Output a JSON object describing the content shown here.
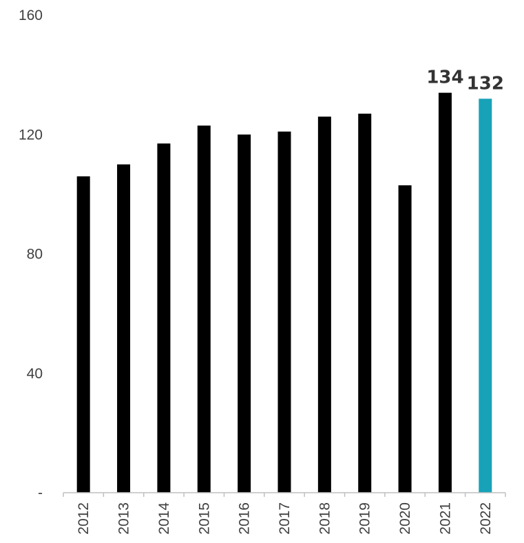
{
  "chart_data": {
    "type": "bar",
    "title": "",
    "xlabel": "",
    "ylabel": "",
    "categories": [
      "2012",
      "2013",
      "2014",
      "2015",
      "2016",
      "2017",
      "2018",
      "2019",
      "2020",
      "2021",
      "2022"
    ],
    "values": [
      106,
      110,
      117,
      123,
      120,
      121,
      126,
      127,
      103,
      134,
      132
    ],
    "ylim": [
      0,
      160
    ],
    "y_ticks": [
      0,
      40,
      80,
      120,
      160
    ],
    "y_tick_labels": [
      "-",
      "40",
      "80",
      "120",
      "160"
    ],
    "data_labels": [
      {
        "category": "2021",
        "text": "134"
      },
      {
        "category": "2022",
        "text": "132"
      }
    ],
    "grid": false,
    "legend": "none",
    "colors": {
      "default_bar": "#000000",
      "highlight_bar": "#17a2b8",
      "highlight_category": "2022",
      "axis": "#bfbfbf",
      "text": "#404040"
    }
  }
}
